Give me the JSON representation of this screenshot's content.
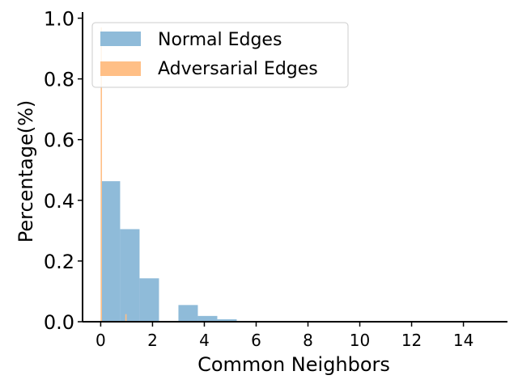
{
  "chart_data": {
    "type": "bar",
    "subtype": "histogram",
    "title": "",
    "xlabel": "Common Neighbors",
    "ylabel": "Percentage(%)",
    "xlim": [
      -0.7,
      15.7
    ],
    "ylim": [
      0,
      1.02
    ],
    "xticks": [
      0,
      2,
      4,
      6,
      8,
      10,
      12,
      14
    ],
    "yticks": [
      0.0,
      0.2,
      0.4,
      0.6,
      0.8,
      1.0
    ],
    "xtick_labels": [
      "0",
      "2",
      "4",
      "6",
      "8",
      "10",
      "12",
      "14"
    ],
    "ytick_labels": [
      "0.0",
      "0.2",
      "0.4",
      "0.6",
      "0.8",
      "1.0"
    ],
    "grid": false,
    "legend_position": "top-left",
    "series": [
      {
        "name": "Normal Edges",
        "color": "#8fbbd9",
        "bins": [
          {
            "x0": 0.0,
            "x1": 0.75,
            "value": 0.463
          },
          {
            "x0": 0.75,
            "x1": 1.5,
            "value": 0.305
          },
          {
            "x0": 1.5,
            "x1": 2.25,
            "value": 0.143
          },
          {
            "x0": 3.0,
            "x1": 3.75,
            "value": 0.055
          },
          {
            "x0": 3.75,
            "x1": 4.5,
            "value": 0.019
          },
          {
            "x0": 4.5,
            "x1": 5.25,
            "value": 0.008
          }
        ]
      },
      {
        "name": "Adversarial Edges",
        "color": "#ffbf86",
        "bins": [
          {
            "x0": 0.0,
            "x1": 0.05,
            "value": 0.97
          },
          {
            "x0": 0.95,
            "x1": 1.0,
            "value": 0.025
          }
        ]
      }
    ]
  }
}
